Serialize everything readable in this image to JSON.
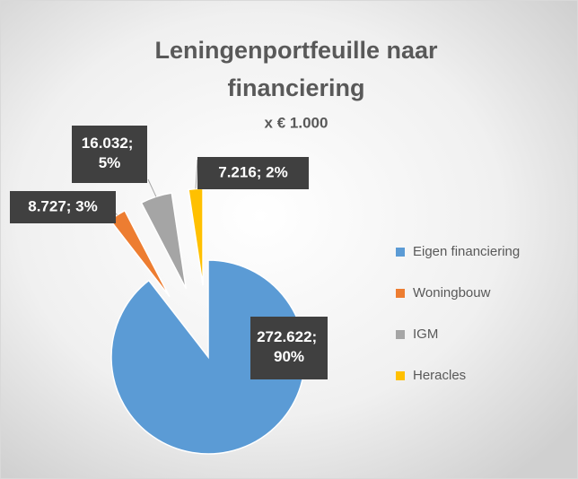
{
  "chart_data": {
    "type": "pie",
    "title": [
      "Leningenportfeuille naar",
      "financiering"
    ],
    "subtitle": "x € 1.000",
    "categories": [
      "Eigen financiering",
      "Woningbouw",
      "IGM",
      "Heracles"
    ],
    "values": [
      272622,
      8727,
      16032,
      7216
    ],
    "value_labels": [
      "272.622; 90%",
      "8.727; 3%",
      "16.032; 5%",
      "7.216; 2%"
    ],
    "colors": [
      "#5b9bd5",
      "#ed7d31",
      "#a5a5a5",
      "#ffc000"
    ],
    "legend": "right"
  }
}
